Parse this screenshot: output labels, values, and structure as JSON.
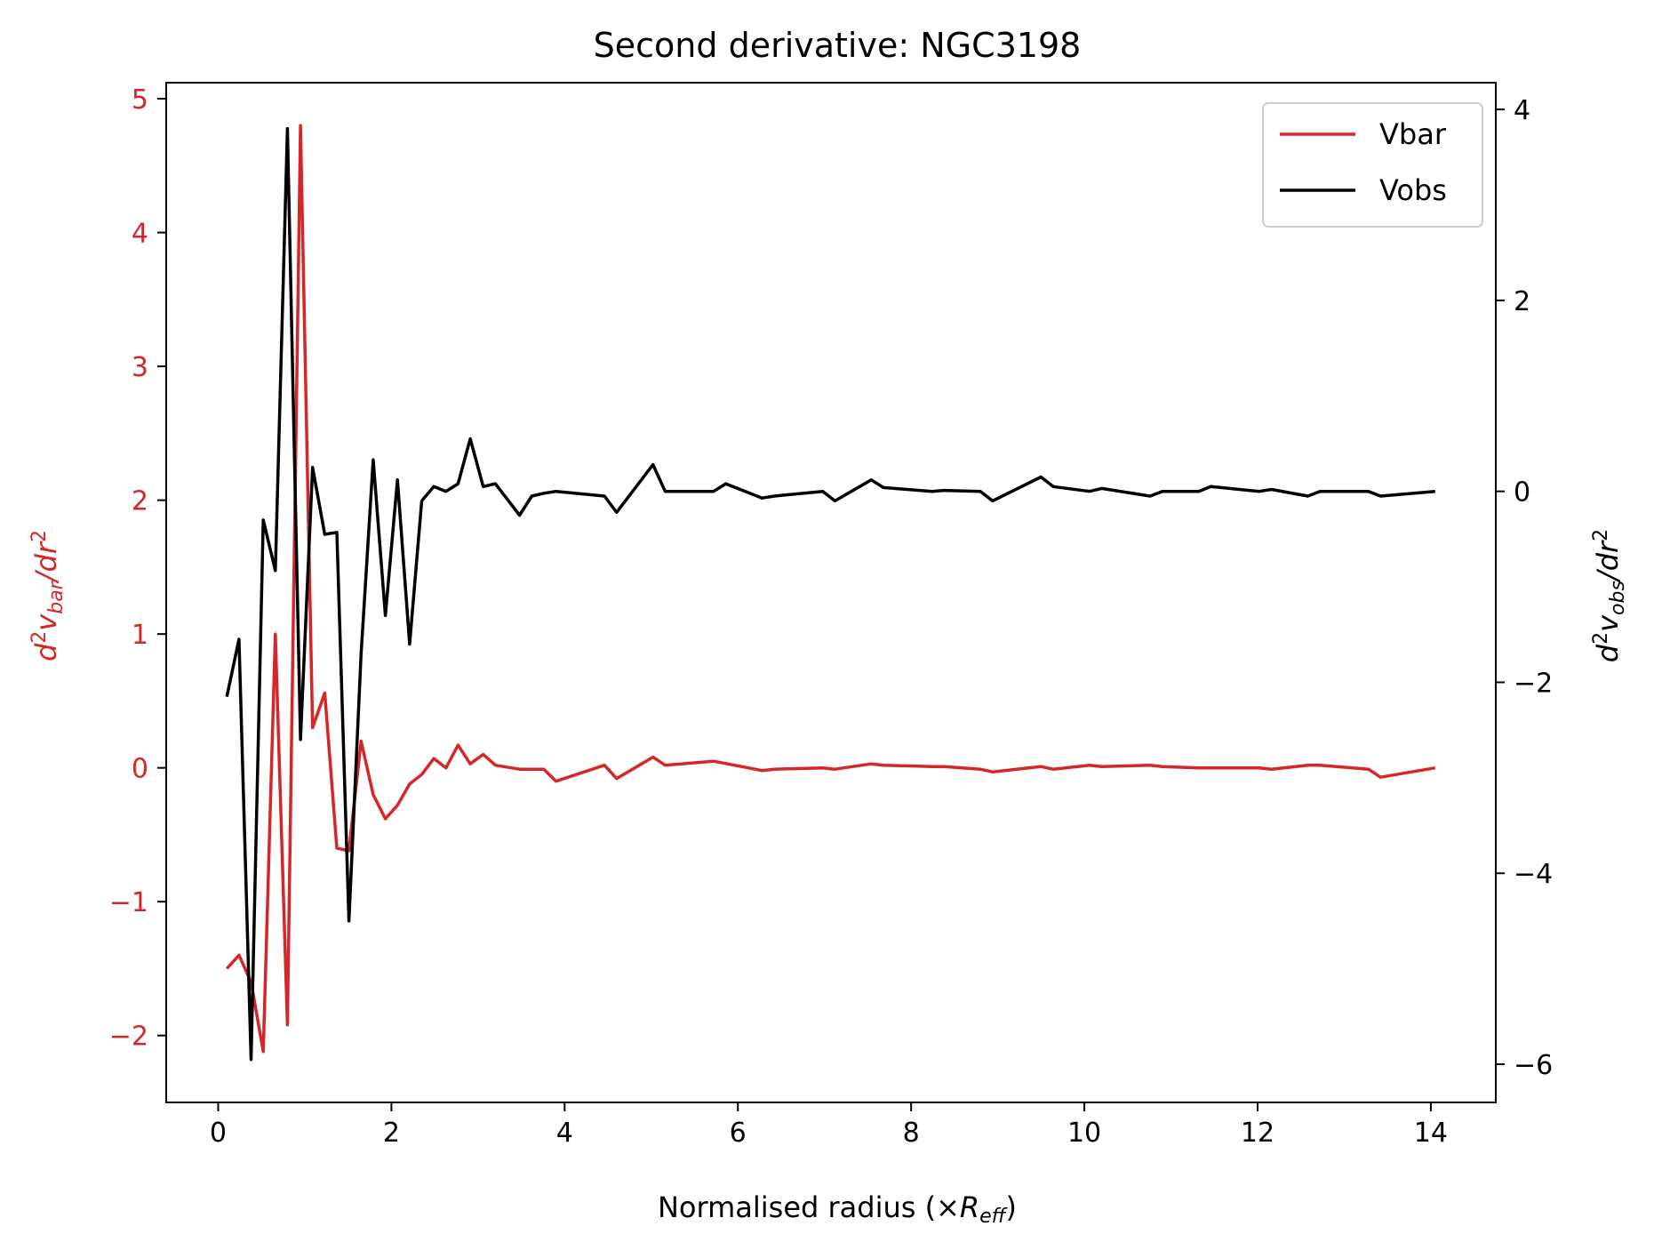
{
  "colors": {
    "vbar": "#d62728",
    "vobs": "#000000",
    "frame": "#000000",
    "legend_border": "#cccccc"
  },
  "chart_data": {
    "type": "line",
    "title": "Second derivative: NGC3198",
    "xlabel_main": "Normalised radius (×",
    "xlabel_sym": "R",
    "xlabel_sub": "eff",
    "xlabel_end": ")",
    "ylabel_left": {
      "pre": "d",
      "sup": "2",
      "v": "v",
      "sub": "bar",
      "post": "/dr",
      "sup2": "2"
    },
    "ylabel_right": {
      "pre": "d",
      "sup": "2",
      "v": "v",
      "sub": "obs",
      "post": "/dr",
      "sup2": "2"
    },
    "xlim": [
      -0.6,
      14.75
    ],
    "ylim_left": [
      -2.5,
      5.12
    ],
    "ylim_right": [
      -6.4,
      4.28
    ],
    "xticks": [
      0,
      2,
      4,
      6,
      8,
      10,
      12,
      14
    ],
    "yticks_left": [
      -2,
      -1,
      0,
      1,
      2,
      3,
      4,
      5
    ],
    "yticks_right": [
      -6,
      -4,
      -2,
      0,
      2,
      4
    ],
    "legend_position": "top-right",
    "series": [
      {
        "name": "Vbar",
        "axis": "left",
        "x": [
          0.1,
          0.24,
          0.38,
          0.52,
          0.66,
          0.8,
          0.95,
          1.09,
          1.23,
          1.37,
          1.51,
          1.65,
          1.79,
          1.93,
          2.07,
          2.21,
          2.35,
          2.49,
          2.63,
          2.77,
          2.91,
          3.06,
          3.2,
          3.48,
          3.62,
          3.76,
          3.9,
          4.46,
          4.6,
          5.02,
          5.16,
          5.72,
          6.28,
          6.42,
          6.98,
          7.12,
          7.54,
          7.68,
          8.24,
          8.38,
          8.8,
          8.94,
          9.5,
          9.64,
          10.06,
          10.2,
          10.76,
          10.9,
          11.32,
          11.46,
          12.02,
          12.16,
          12.58,
          12.72,
          13.28,
          13.42,
          14.05
        ],
        "values": [
          -1.5,
          -1.4,
          -1.6,
          -2.12,
          1.0,
          -1.92,
          4.8,
          0.3,
          0.56,
          -0.6,
          -0.62,
          0.2,
          -0.2,
          -0.38,
          -0.28,
          -0.12,
          -0.05,
          0.07,
          0.0,
          0.17,
          0.03,
          0.1,
          0.02,
          -0.01,
          -0.01,
          -0.01,
          -0.1,
          0.02,
          -0.08,
          0.08,
          0.02,
          0.05,
          -0.02,
          -0.01,
          0.0,
          -0.01,
          0.03,
          0.02,
          0.01,
          0.01,
          -0.01,
          -0.03,
          0.01,
          -0.01,
          0.02,
          0.01,
          0.02,
          0.01,
          0.0,
          0.0,
          0.0,
          -0.01,
          0.02,
          0.02,
          -0.01,
          -0.07,
          0.0
        ]
      },
      {
        "name": "Vobs",
        "axis": "right",
        "x": [
          0.1,
          0.24,
          0.38,
          0.52,
          0.66,
          0.8,
          0.95,
          1.09,
          1.23,
          1.37,
          1.51,
          1.65,
          1.79,
          1.93,
          2.07,
          2.21,
          2.35,
          2.49,
          2.63,
          2.77,
          2.91,
          3.06,
          3.2,
          3.48,
          3.62,
          3.76,
          3.9,
          4.46,
          4.6,
          5.02,
          5.16,
          5.72,
          5.86,
          6.28,
          6.42,
          6.98,
          7.12,
          7.54,
          7.68,
          8.24,
          8.38,
          8.8,
          8.94,
          9.5,
          9.64,
          10.06,
          10.2,
          10.76,
          10.9,
          11.32,
          11.46,
          12.02,
          12.16,
          12.58,
          12.72,
          13.28,
          13.42,
          14.05
        ],
        "values": [
          -2.15,
          -1.55,
          -5.95,
          -0.3,
          -0.83,
          3.8,
          -2.6,
          0.25,
          -0.45,
          -0.43,
          -4.5,
          -1.7,
          0.33,
          -1.3,
          0.12,
          -1.6,
          -0.1,
          0.05,
          0.0,
          0.08,
          0.55,
          0.05,
          0.08,
          -0.25,
          -0.05,
          -0.02,
          0.0,
          -0.05,
          -0.22,
          0.28,
          0.0,
          0.0,
          0.08,
          -0.07,
          -0.05,
          0.0,
          -0.1,
          0.12,
          0.04,
          0.0,
          0.01,
          0.0,
          -0.1,
          0.15,
          0.05,
          0.0,
          0.03,
          -0.05,
          0.0,
          0.0,
          0.05,
          0.0,
          0.02,
          -0.05,
          0.0,
          0.0,
          -0.05,
          0.0
        ]
      }
    ]
  }
}
